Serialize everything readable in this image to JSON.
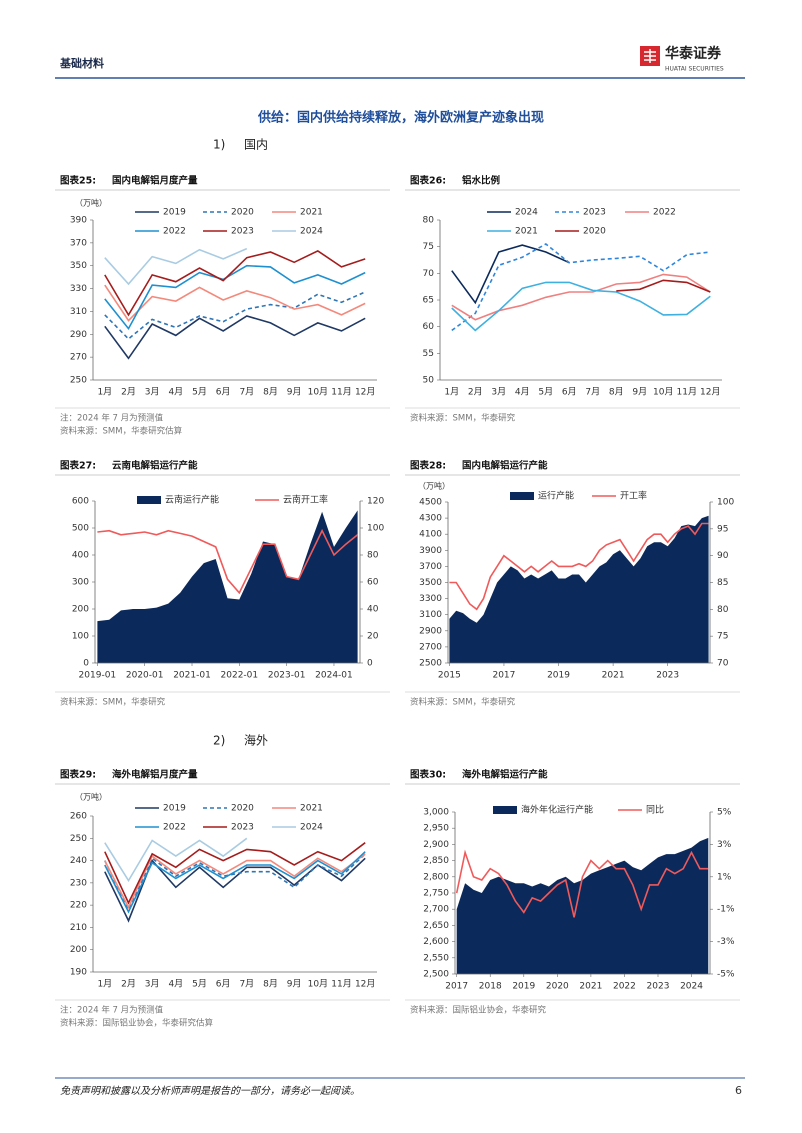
{
  "header": {
    "section": "基础材料",
    "logo_name": "华泰证券",
    "logo_sub": "HUATAI SECURITIES"
  },
  "section_title": "供给：国内供给持续释放，海外欧洲复产迹象出现",
  "subheadings": [
    {
      "number": "1)",
      "text": "国内"
    },
    {
      "number": "2)",
      "text": "海外"
    }
  ],
  "chart_data": [
    {
      "type": "line",
      "figure_label": "图表25:",
      "title": "国内电解铝月度产量",
      "unit": "（万吨）",
      "categories": [
        "1月",
        "2月",
        "3月",
        "4月",
        "5月",
        "6月",
        "7月",
        "8月",
        "9月",
        "10月",
        "11月",
        "12月"
      ],
      "ylim": [
        250,
        390
      ],
      "yticks": [
        250,
        270,
        290,
        310,
        330,
        350,
        370,
        390
      ],
      "series": [
        {
          "name": "2019",
          "color": "#1f3864",
          "values": [
            297,
            269,
            299,
            289,
            304,
            293,
            306,
            300,
            289,
            300,
            293,
            304
          ]
        },
        {
          "name": "2020",
          "color": "#2e75b6",
          "dashed": true,
          "values": [
            307,
            286,
            303,
            296,
            306,
            301,
            312,
            316,
            313,
            325,
            318,
            327
          ]
        },
        {
          "name": "2021",
          "color": "#f4897b",
          "values": [
            333,
            302,
            323,
            319,
            331,
            320,
            328,
            322,
            312,
            316,
            307,
            317
          ]
        },
        {
          "name": "2022",
          "color": "#1e90d0",
          "values": [
            321,
            295,
            333,
            331,
            344,
            338,
            350,
            349,
            335,
            342,
            334,
            344
          ]
        },
        {
          "name": "2023",
          "color": "#a51c1c",
          "values": [
            342,
            307,
            342,
            336,
            348,
            337,
            357,
            362,
            353,
            363,
            349,
            356
          ]
        },
        {
          "name": "2024",
          "color": "#a9cce3",
          "values": [
            357,
            334,
            358,
            352,
            364,
            356,
            365,
            null,
            null,
            null,
            null,
            null
          ]
        }
      ],
      "notes": [
        "注：2024 年 7 月为预测值"
      ],
      "source": "资料来源：SMM，华泰研究估算"
    },
    {
      "type": "line",
      "figure_label": "图表26:",
      "title": "铝水比例",
      "categories": [
        "1月",
        "2月",
        "3月",
        "4月",
        "5月",
        "6月",
        "7月",
        "8月",
        "9月",
        "10月",
        "11月",
        "12月"
      ],
      "ylim": [
        50,
        80
      ],
      "yticks": [
        50,
        55,
        60,
        65,
        70,
        75,
        80
      ],
      "series": [
        {
          "name": "2024",
          "color": "#0b2a5b",
          "values": [
            70.5,
            64.5,
            74,
            75.3,
            74,
            72,
            null,
            null,
            null,
            null,
            null,
            null
          ]
        },
        {
          "name": "2023",
          "color": "#2e86de",
          "dashed": true,
          "values": [
            59.3,
            62.5,
            71.5,
            73,
            75.5,
            72,
            72.5,
            72.8,
            73.2,
            70.5,
            73.5,
            74
          ]
        },
        {
          "name": "2022",
          "color": "#f08080",
          "values": [
            64,
            61.3,
            63,
            64,
            65.5,
            66.5,
            66.5,
            68,
            68.3,
            69.8,
            69.3,
            66.5
          ]
        },
        {
          "name": "2021",
          "color": "#3fb0e0",
          "values": [
            63.5,
            59.3,
            63,
            67.2,
            68.3,
            68.3,
            66.8,
            66.5,
            64.8,
            62.2,
            62.3,
            65.7
          ]
        },
        {
          "name": "2020",
          "color": "#a51c1c",
          "values": [
            null,
            null,
            null,
            null,
            null,
            null,
            null,
            66.7,
            67,
            68.7,
            68.3,
            66.5
          ]
        }
      ],
      "notes": [],
      "source": "资料来源：SMM，华泰研究"
    },
    {
      "type": "area",
      "figure_label": "图表27:",
      "title": "云南电解铝运行产能",
      "x": [
        2019,
        2019.25,
        2019.5,
        2019.75,
        2020,
        2020.25,
        2020.5,
        2020.75,
        2021,
        2021.25,
        2021.5,
        2021.75,
        2022,
        2022.25,
        2022.5,
        2022.75,
        2023,
        2023.25,
        2023.5,
        2023.75,
        2024,
        2024.25,
        2024.5
      ],
      "xlim": [
        2018.95,
        2024.55
      ],
      "xticks": [
        {
          "value": 2019,
          "label": "2019-01"
        },
        {
          "value": 2020,
          "label": "2020-01"
        },
        {
          "value": 2021,
          "label": "2021-01"
        },
        {
          "value": 2022,
          "label": "2022-01"
        },
        {
          "value": 2023,
          "label": "2023-01"
        },
        {
          "value": 2024,
          "label": "2024-01"
        }
      ],
      "ylim": [
        0,
        600
      ],
      "yticks": [
        0,
        100,
        200,
        300,
        400,
        500,
        600
      ],
      "y2lim": [
        0,
        120
      ],
      "y2ticks": [
        0,
        20,
        40,
        60,
        80,
        100,
        120
      ],
      "series": [
        {
          "name": "云南运行产能",
          "color": "#0b2a5b",
          "type": "area",
          "values": [
            155,
            160,
            195,
            200,
            200,
            205,
            220,
            260,
            320,
            370,
            385,
            240,
            235,
            330,
            450,
            440,
            320,
            310,
            440,
            560,
            430,
            500,
            565
          ]
        },
        {
          "name": "云南开工率",
          "color": "#f05a5a",
          "axis": "y2",
          "values": [
            97,
            98,
            95,
            96,
            97,
            95,
            98,
            96,
            94,
            90,
            86,
            62,
            52,
            70,
            88,
            88,
            64,
            62,
            80,
            98,
            80,
            88,
            95
          ]
        }
      ],
      "notes": [],
      "source": "资料来源：SMM，华泰研究"
    },
    {
      "type": "area",
      "figure_label": "图表28:",
      "title": "国内电解铝运行产能",
      "unit": "（万吨）",
      "x": [
        2015,
        2015.25,
        2015.5,
        2015.75,
        2016,
        2016.25,
        2016.5,
        2016.75,
        2017,
        2017.25,
        2017.5,
        2017.75,
        2018,
        2018.25,
        2018.5,
        2018.75,
        2019,
        2019.25,
        2019.5,
        2019.75,
        2020,
        2020.25,
        2020.5,
        2020.75,
        2021,
        2021.25,
        2021.5,
        2021.75,
        2022,
        2022.25,
        2022.5,
        2022.75,
        2023,
        2023.25,
        2023.5,
        2023.75,
        2024,
        2024.25,
        2024.5
      ],
      "xlim": [
        2014.95,
        2024.55
      ],
      "xticks": [
        2015,
        2017,
        2019,
        2021,
        2023
      ],
      "ylim": [
        2500,
        4500
      ],
      "yticks": [
        2500,
        2700,
        2900,
        3100,
        3300,
        3500,
        3700,
        3900,
        4100,
        4300,
        4500
      ],
      "y2lim": [
        70,
        100
      ],
      "y2ticks": [
        70,
        75,
        80,
        85,
        90,
        95,
        100
      ],
      "series": [
        {
          "name": "运行产能",
          "color": "#0b2a5b",
          "type": "area",
          "values": [
            3050,
            3150,
            3120,
            3050,
            3000,
            3100,
            3300,
            3500,
            3600,
            3700,
            3650,
            3550,
            3600,
            3550,
            3600,
            3650,
            3550,
            3550,
            3600,
            3600,
            3500,
            3600,
            3700,
            3750,
            3850,
            3900,
            3800,
            3700,
            3800,
            3950,
            4000,
            4000,
            3950,
            4050,
            4200,
            4220,
            4200,
            4300,
            4330
          ]
        },
        {
          "name": "开工率",
          "color": "#f05a5a",
          "axis": "y2",
          "values": [
            85,
            85,
            83,
            81,
            80,
            82,
            86,
            88,
            90,
            89,
            88,
            87,
            88,
            87,
            88,
            89,
            88,
            88,
            88,
            88.5,
            88,
            89,
            91,
            92,
            92.5,
            93,
            91,
            89,
            91,
            93,
            94,
            94,
            92.5,
            94,
            95,
            95.5,
            94,
            96,
            96
          ]
        }
      ],
      "notes": [],
      "source": "资料来源：SMM，华泰研究"
    },
    {
      "type": "line",
      "figure_label": "图表29:",
      "title": "海外电解铝月度产量",
      "unit": "（万吨）",
      "categories": [
        "1月",
        "2月",
        "3月",
        "4月",
        "5月",
        "6月",
        "7月",
        "8月",
        "9月",
        "10月",
        "11月",
        "12月"
      ],
      "ylim": [
        190,
        260
      ],
      "yticks": [
        190,
        200,
        210,
        220,
        230,
        240,
        250,
        260
      ],
      "series": [
        {
          "name": "2019",
          "color": "#1f3864",
          "values": [
            235,
            213,
            240,
            228,
            237,
            228,
            237,
            237,
            229,
            238,
            231,
            241
          ]
        },
        {
          "name": "2020",
          "color": "#2e75b6",
          "dashed": true,
          "values": [
            240,
            218,
            241,
            233,
            239,
            233,
            235,
            235,
            228,
            238,
            233,
            243
          ]
        },
        {
          "name": "2021",
          "color": "#f4897b",
          "values": [
            240,
            219,
            242,
            234,
            240,
            234,
            240,
            240,
            233,
            241,
            235,
            243
          ]
        },
        {
          "name": "2022",
          "color": "#1e90d0",
          "values": [
            238,
            217,
            239,
            232,
            238,
            232,
            238,
            238,
            232,
            240,
            234,
            244
          ]
        },
        {
          "name": "2023",
          "color": "#a51c1c",
          "values": [
            244,
            221,
            243,
            237,
            245,
            240,
            245,
            244,
            238,
            244,
            240,
            248
          ]
        },
        {
          "name": "2024",
          "color": "#a9cce3",
          "values": [
            248,
            231,
            249,
            242,
            249,
            242,
            250,
            null,
            null,
            null,
            null,
            null
          ]
        }
      ],
      "notes": [
        "注：2024 年 7 月为预测值"
      ],
      "source": "资料来源：国际铝业协会，华泰研究估算"
    },
    {
      "type": "area",
      "figure_label": "图表30:",
      "title": "海外电解铝运行产能",
      "x": [
        2017,
        2017.25,
        2017.5,
        2017.75,
        2018,
        2018.25,
        2018.5,
        2018.75,
        2019,
        2019.25,
        2019.5,
        2019.75,
        2020,
        2020.25,
        2020.5,
        2020.75,
        2021,
        2021.25,
        2021.5,
        2021.75,
        2022,
        2022.25,
        2022.5,
        2022.75,
        2023,
        2023.25,
        2023.5,
        2023.75,
        2024,
        2024.25,
        2024.5
      ],
      "xlim": [
        2016.95,
        2024.55
      ],
      "xticks": [
        2017,
        2018,
        2019,
        2020,
        2021,
        2022,
        2023,
        2024
      ],
      "ylim": [
        2500,
        3000
      ],
      "yticks": [
        {
          "value": 2500,
          "label": "2,500"
        },
        {
          "value": 2550,
          "label": "2,550"
        },
        {
          "value": 2600,
          "label": "2,600"
        },
        {
          "value": 2650,
          "label": "2,650"
        },
        {
          "value": 2700,
          "label": "2,700"
        },
        {
          "value": 2750,
          "label": "2,750"
        },
        {
          "value": 2800,
          "label": "2,800"
        },
        {
          "value": 2850,
          "label": "2,850"
        },
        {
          "value": 2900,
          "label": "2,900"
        },
        {
          "value": 2950,
          "label": "2,950"
        },
        {
          "value": 3000,
          "label": "3,000"
        }
      ],
      "y2lim": [
        -5,
        5
      ],
      "y2ticks": [
        {
          "value": -5,
          "label": "-5%"
        },
        {
          "value": -3,
          "label": "-3%"
        },
        {
          "value": -1,
          "label": "-1%"
        },
        {
          "value": 1,
          "label": "1%"
        },
        {
          "value": 3,
          "label": "3%"
        },
        {
          "value": 5,
          "label": "5%"
        }
      ],
      "series": [
        {
          "name": "海外年化运行产能",
          "color": "#0b2a5b",
          "type": "area",
          "values": [
            2700,
            2780,
            2760,
            2750,
            2790,
            2800,
            2790,
            2780,
            2780,
            2770,
            2780,
            2770,
            2790,
            2800,
            2780,
            2790,
            2810,
            2820,
            2830,
            2840,
            2850,
            2830,
            2820,
            2840,
            2860,
            2870,
            2870,
            2880,
            2890,
            2910,
            2920
          ]
        },
        {
          "name": "同比",
          "color": "#f05a5a",
          "axis": "y2",
          "values": [
            0,
            2.5,
            1,
            0.8,
            1.5,
            1.2,
            0.5,
            -0.5,
            -1.2,
            -0.3,
            -0.5,
            0,
            0.5,
            0.8,
            -1.5,
            1,
            2,
            1.5,
            2,
            1.5,
            1.5,
            0.5,
            -1,
            0.5,
            0.5,
            1.5,
            1.2,
            1.5,
            2.5,
            1.5,
            1.5
          ]
        }
      ],
      "notes": [],
      "source": "资料来源：国际铝业协会，华泰研究"
    }
  ],
  "footer": {
    "disclaimer": "免责声明和披露以及分析师声明是报告的一部分，请务必一起阅读。",
    "page_number": "6"
  }
}
